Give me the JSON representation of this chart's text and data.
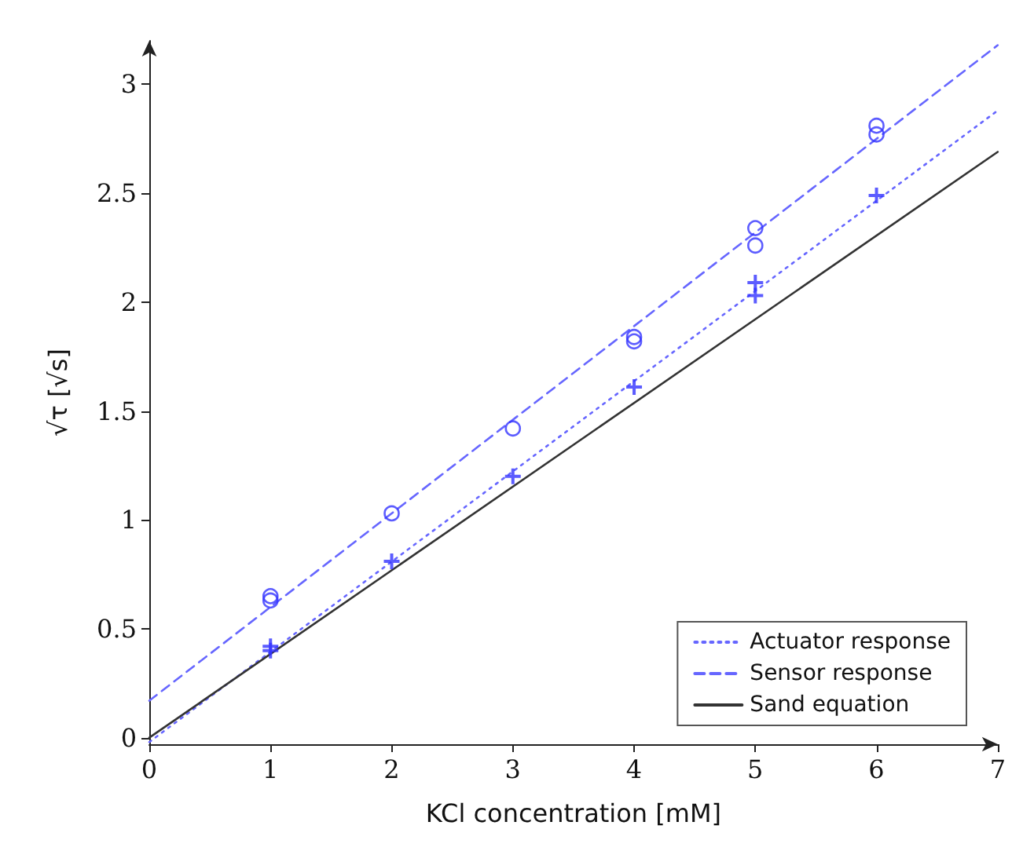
{
  "chart_data": {
    "type": "line",
    "xlabel": "KCl concentration [mM]",
    "ylabel": "√τ [√s]",
    "xlim": [
      0,
      7
    ],
    "ylim": [
      -0.03,
      3.2
    ],
    "xticks": [
      0,
      1,
      2,
      3,
      4,
      5,
      6,
      7
    ],
    "yticks": [
      0,
      0.5,
      1,
      1.5,
      2,
      2.5,
      3
    ],
    "grid": false,
    "legend": "bottom right",
    "series": [
      {
        "type": "scatter",
        "color": "#3333ff",
        "marker": "cross",
        "x": [
          1,
          1,
          2,
          3,
          4,
          5,
          5,
          6
        ],
        "values": [
          0.4,
          0.42,
          0.81,
          1.2,
          1.61,
          2.03,
          2.09,
          2.49
        ]
      },
      {
        "type": "scatter",
        "color": "#3333ff",
        "marker": "circle",
        "x": [
          1,
          1,
          2,
          3,
          4,
          4,
          5,
          5,
          6,
          6
        ],
        "values": [
          0.63,
          0.65,
          1.03,
          1.42,
          1.82,
          1.84,
          2.26,
          2.34,
          2.77,
          2.81
        ]
      },
      {
        "name": "Actuator response",
        "color": "#6666ff",
        "line_style": "dotted",
        "marker": "none",
        "x": [
          0,
          7
        ],
        "values": [
          -0.02,
          2.88
        ]
      },
      {
        "name": "Sensor response",
        "color": "#6666ff",
        "line_style": "dashed",
        "marker": "none",
        "x": [
          0,
          7
        ],
        "values": [
          0.17,
          3.18
        ]
      },
      {
        "name": "Sand equation",
        "color": "#333333",
        "line_style": "solid",
        "marker": "none",
        "x": [
          0,
          7
        ],
        "values": [
          0,
          2.69
        ]
      }
    ]
  }
}
